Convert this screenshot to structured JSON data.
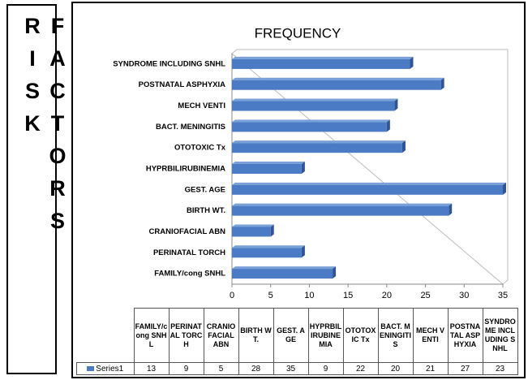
{
  "side_label": "RISK FACTORS",
  "chart_data": {
    "type": "barh",
    "title": "FREQUENCY",
    "categories": [
      "FAMILY/cong SNHL",
      "PERINATAL TORCH",
      "CRANIOFACIAL ABN",
      "BIRTH WT.",
      "GEST. AGE",
      "HYPRBILIRUBINEMIA",
      "OTOTOXIC Tx",
      "BACT. MENINGITIS",
      "MECH VENTI",
      "POSTNATAL ASPHYXIA",
      "SYNDROME INCLUDING SNHL"
    ],
    "series": [
      {
        "name": "Series1",
        "color": "#4a7bc4",
        "values": [
          13,
          9,
          5,
          28,
          35,
          9,
          22,
          20,
          21,
          27,
          23
        ]
      }
    ],
    "xlim": [
      0,
      35
    ],
    "xticks": [
      0,
      5,
      10,
      15,
      20,
      25,
      30,
      35
    ]
  }
}
